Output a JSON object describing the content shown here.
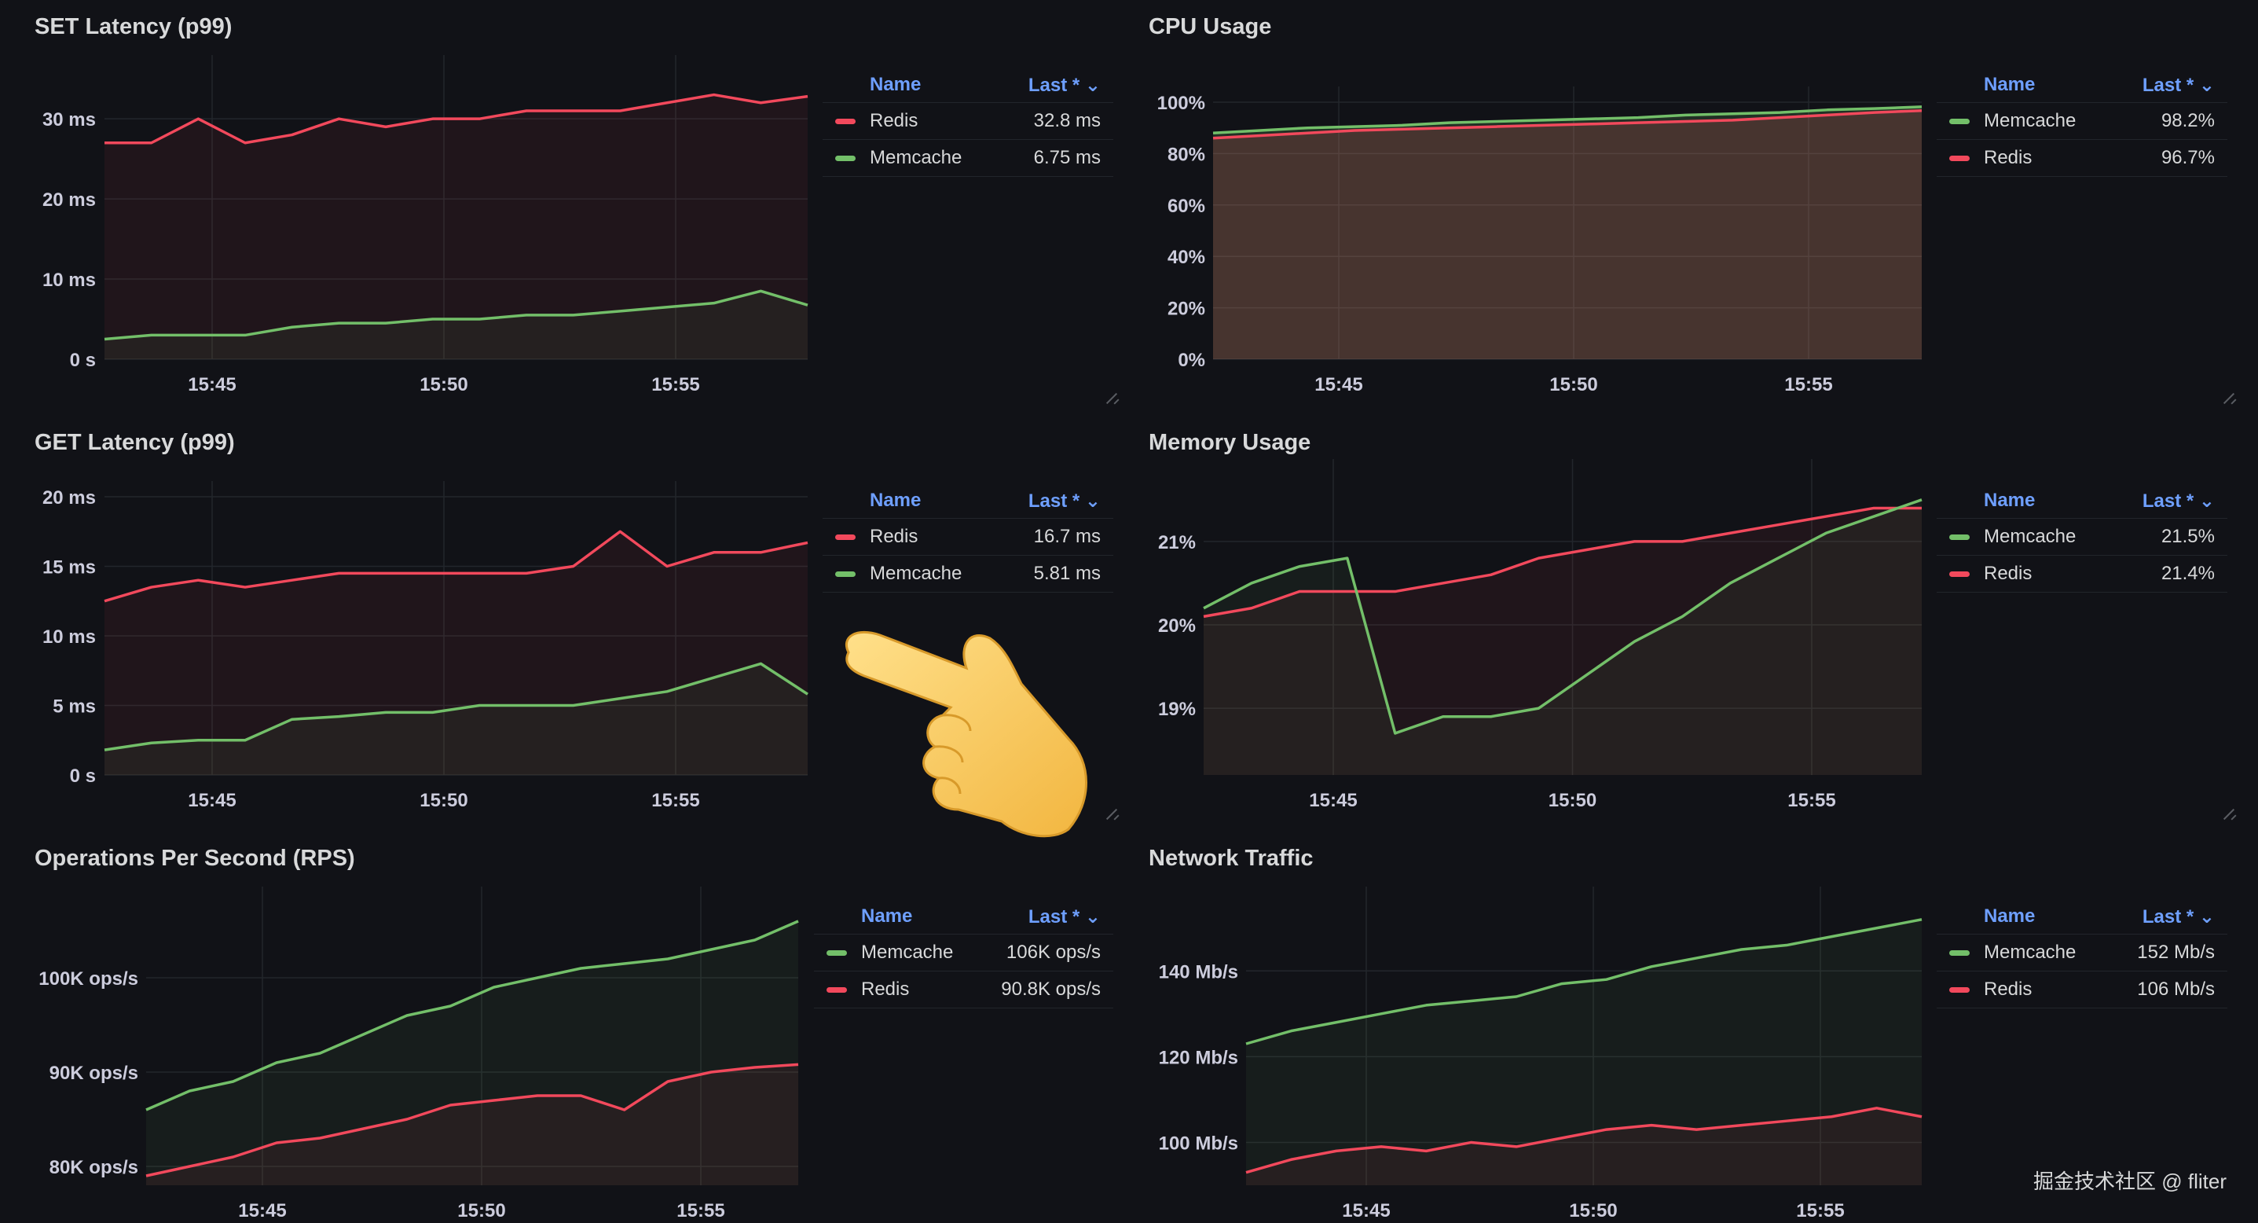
{
  "colors": {
    "redis": "#f2495c",
    "memcache": "#73bf69",
    "legend_header": "#6e9fff",
    "background": "#111217"
  },
  "panels": [
    {
      "title": "SET Latency (p99)",
      "legend_header": {
        "name": "Name",
        "last": "Last *"
      },
      "legend": [
        {
          "name": "Redis",
          "value": "32.8 ms",
          "color": "#f2495c"
        },
        {
          "name": "Memcache",
          "value": "6.75 ms",
          "color": "#73bf69"
        }
      ]
    },
    {
      "title": "CPU Usage",
      "legend_header": {
        "name": "Name",
        "last": "Last *"
      },
      "legend": [
        {
          "name": "Memcache",
          "value": "98.2%",
          "color": "#73bf69"
        },
        {
          "name": "Redis",
          "value": "96.7%",
          "color": "#f2495c"
        }
      ]
    },
    {
      "title": "GET Latency (p99)",
      "legend_header": {
        "name": "Name",
        "last": "Last *"
      },
      "legend": [
        {
          "name": "Redis",
          "value": "16.7 ms",
          "color": "#f2495c"
        },
        {
          "name": "Memcache",
          "value": "5.81 ms",
          "color": "#73bf69"
        }
      ]
    },
    {
      "title": "Memory Usage",
      "legend_header": {
        "name": "Name",
        "last": "Last *"
      },
      "legend": [
        {
          "name": "Memcache",
          "value": "21.5%",
          "color": "#73bf69"
        },
        {
          "name": "Redis",
          "value": "21.4%",
          "color": "#f2495c"
        }
      ]
    },
    {
      "title": "Operations Per Second (RPS)",
      "legend_header": {
        "name": "Name",
        "last": "Last *"
      },
      "legend": [
        {
          "name": "Memcache",
          "value": "106K ops/s",
          "color": "#73bf69"
        },
        {
          "name": "Redis",
          "value": "90.8K ops/s",
          "color": "#f2495c"
        }
      ]
    },
    {
      "title": "Network Traffic",
      "legend_header": {
        "name": "Name",
        "last": "Last *"
      },
      "legend": [
        {
          "name": "Memcache",
          "value": "152 Mb/s",
          "color": "#73bf69"
        },
        {
          "name": "Redis",
          "value": "106 Mb/s",
          "color": "#f2495c"
        }
      ]
    }
  ],
  "chart_data": [
    {
      "type": "line",
      "title": "SET Latency (p99)",
      "x": [
        "15:42",
        "15:43",
        "15:44",
        "15:45",
        "15:46",
        "15:47",
        "15:48",
        "15:49",
        "15:50",
        "15:51",
        "15:52",
        "15:53",
        "15:54",
        "15:55",
        "15:56",
        "15:57"
      ],
      "xticks": [
        "15:45",
        "15:50",
        "15:55"
      ],
      "yticks": [
        "0 s",
        "10 ms",
        "20 ms",
        "30 ms"
      ],
      "ylim": [
        0,
        36
      ],
      "series": [
        {
          "name": "Redis",
          "values": [
            27,
            27,
            30,
            27,
            28,
            30,
            29,
            30,
            30,
            31,
            31,
            31,
            32,
            33,
            32,
            32.8
          ]
        },
        {
          "name": "Memcache",
          "values": [
            2.5,
            3,
            3,
            3,
            4,
            4.5,
            4.5,
            5,
            5,
            5.5,
            5.5,
            6,
            6.5,
            7,
            8.5,
            6.75
          ]
        }
      ]
    },
    {
      "type": "area",
      "title": "CPU Usage",
      "x": [
        "15:42",
        "15:43",
        "15:44",
        "15:45",
        "15:46",
        "15:47",
        "15:48",
        "15:49",
        "15:50",
        "15:51",
        "15:52",
        "15:53",
        "15:54",
        "15:55",
        "15:56",
        "15:57"
      ],
      "xticks": [
        "15:45",
        "15:50",
        "15:55"
      ],
      "yticks": [
        "0%",
        "20%",
        "40%",
        "60%",
        "80%",
        "100%"
      ],
      "ylim": [
        0,
        100
      ],
      "series": [
        {
          "name": "Memcache",
          "values": [
            88,
            89,
            90,
            90.5,
            91,
            92,
            92.5,
            93,
            93.5,
            94,
            95,
            95.5,
            96,
            97,
            97.5,
            98.2
          ]
        },
        {
          "name": "Redis",
          "values": [
            86,
            87,
            88,
            89,
            89.5,
            90,
            90.5,
            91,
            91.5,
            92,
            92.5,
            93,
            94,
            95,
            96,
            96.7
          ]
        }
      ]
    },
    {
      "type": "line",
      "title": "GET Latency (p99)",
      "x": [
        "15:42",
        "15:43",
        "15:44",
        "15:45",
        "15:46",
        "15:47",
        "15:48",
        "15:49",
        "15:50",
        "15:51",
        "15:52",
        "15:53",
        "15:54",
        "15:55",
        "15:56",
        "15:57"
      ],
      "xticks": [
        "15:45",
        "15:50",
        "15:55"
      ],
      "yticks": [
        "0 s",
        "5 ms",
        "10 ms",
        "15 ms",
        "20 ms"
      ],
      "ylim": [
        0,
        20
      ],
      "series": [
        {
          "name": "Redis",
          "values": [
            12.5,
            13.5,
            14,
            13.5,
            14,
            14.5,
            14.5,
            14.5,
            14.5,
            14.5,
            15,
            17.5,
            15,
            16,
            16,
            16.7
          ]
        },
        {
          "name": "Memcache",
          "values": [
            1.8,
            2.3,
            2.5,
            2.5,
            4,
            4.2,
            4.5,
            4.5,
            5,
            5,
            5,
            5.5,
            6,
            7,
            8,
            5.81
          ]
        }
      ]
    },
    {
      "type": "line",
      "title": "Memory Usage",
      "x": [
        "15:42",
        "15:43",
        "15:44",
        "15:45",
        "15:46",
        "15:47",
        "15:48",
        "15:49",
        "15:50",
        "15:51",
        "15:52",
        "15:53",
        "15:54",
        "15:55",
        "15:56",
        "15:57"
      ],
      "xticks": [
        "15:45",
        "15:50",
        "15:55"
      ],
      "yticks": [
        "19%",
        "20%",
        "21%"
      ],
      "ylim": [
        18.2,
        21.8
      ],
      "series": [
        {
          "name": "Redis",
          "values": [
            20.1,
            20.2,
            20.4,
            20.4,
            20.4,
            20.5,
            20.6,
            20.8,
            20.9,
            21,
            21,
            21.1,
            21.2,
            21.3,
            21.4,
            21.4
          ]
        },
        {
          "name": "Memcache",
          "values": [
            20.2,
            20.5,
            20.7,
            20.8,
            18.7,
            18.9,
            18.9,
            19,
            19.4,
            19.8,
            20.1,
            20.5,
            20.8,
            21.1,
            21.3,
            21.5
          ]
        }
      ]
    },
    {
      "type": "line",
      "title": "Operations Per Second (RPS)",
      "x": [
        "15:42",
        "15:43",
        "15:44",
        "15:45",
        "15:46",
        "15:47",
        "15:48",
        "15:49",
        "15:50",
        "15:51",
        "15:52",
        "15:53",
        "15:54",
        "15:55",
        "15:56",
        "15:57"
      ],
      "xticks": [
        "15:45",
        "15:50",
        "15:55"
      ],
      "yticks": [
        "80K ops/s",
        "90K ops/s",
        "100K ops/s"
      ],
      "ylim": [
        78,
        108
      ],
      "series": [
        {
          "name": "Memcache",
          "values": [
            86,
            88,
            89,
            91,
            92,
            94,
            96,
            97,
            99,
            100,
            101,
            101.5,
            102,
            103,
            104,
            106
          ]
        },
        {
          "name": "Redis",
          "values": [
            79,
            80,
            81,
            82.5,
            83,
            84,
            85,
            86.5,
            87,
            87.5,
            87.5,
            86,
            89,
            90,
            90.5,
            90.8
          ]
        }
      ]
    },
    {
      "type": "line",
      "title": "Network Traffic",
      "x": [
        "15:42",
        "15:43",
        "15:44",
        "15:45",
        "15:46",
        "15:47",
        "15:48",
        "15:49",
        "15:50",
        "15:51",
        "15:52",
        "15:53",
        "15:54",
        "15:55",
        "15:56",
        "15:57"
      ],
      "xticks": [
        "15:45",
        "15:50",
        "15:55"
      ],
      "yticks": [
        "100 Mb/s",
        "120 Mb/s",
        "140 Mb/s"
      ],
      "ylim": [
        90,
        156
      ],
      "series": [
        {
          "name": "Memcache",
          "values": [
            123,
            126,
            128,
            130,
            132,
            133,
            134,
            137,
            138,
            141,
            143,
            145,
            146,
            148,
            150,
            152
          ]
        },
        {
          "name": "Redis",
          "values": [
            93,
            96,
            98,
            99,
            98,
            100,
            99,
            101,
            103,
            104,
            103,
            104,
            105,
            106,
            108,
            106
          ]
        }
      ]
    }
  ],
  "watermark": "掘金技术社区 @ fliter"
}
